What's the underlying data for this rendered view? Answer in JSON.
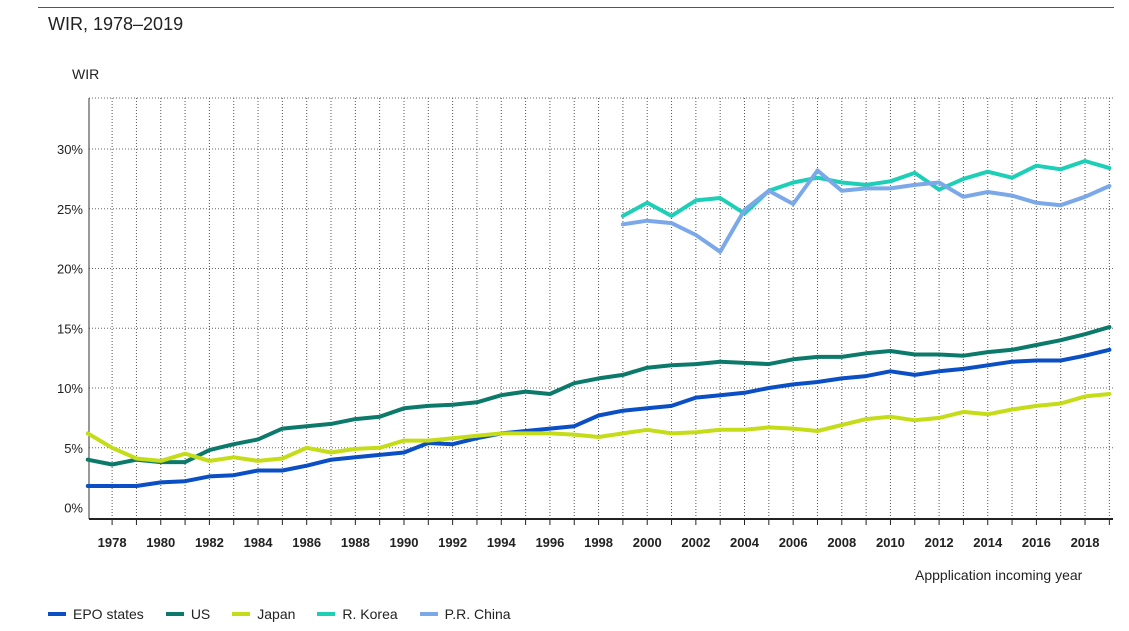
{
  "chart_data": {
    "type": "line",
    "title": "WIR, 1978–2019",
    "ylabel": "WIR",
    "xlabel": "Appplication incoming year",
    "xlim": [
      1977,
      2019
    ],
    "ylim": [
      0,
      35
    ],
    "yticks": [
      "0%",
      "5%",
      "10%",
      "15%",
      "20%",
      "25%",
      "30%"
    ],
    "ytick_values": [
      0,
      5,
      10,
      15,
      20,
      25,
      30
    ],
    "xticks": [
      "1978",
      "1980",
      "1982",
      "1984",
      "1986",
      "1988",
      "1990",
      "1992",
      "1994",
      "1996",
      "1998",
      "2000",
      "2002",
      "2004",
      "2006",
      "2008",
      "2010",
      "2012",
      "2014",
      "2016",
      "2018"
    ],
    "xtick_values": [
      1978,
      1980,
      1982,
      1984,
      1986,
      1988,
      1990,
      1992,
      1994,
      1996,
      1998,
      2000,
      2002,
      2004,
      2006,
      2008,
      2010,
      2012,
      2014,
      2016,
      2018
    ],
    "grid": "vertical dotted and horizontal dotted",
    "legend_placement": "bottom",
    "series": [
      {
        "name": "EPO states",
        "color": "#0a4fc4",
        "x": [
          1977,
          1978,
          1979,
          1980,
          1981,
          1982,
          1983,
          1984,
          1985,
          1986,
          1987,
          1988,
          1989,
          1990,
          1991,
          1992,
          1993,
          1994,
          1995,
          1996,
          1997,
          1998,
          1999,
          2000,
          2001,
          2002,
          2003,
          2004,
          2005,
          2006,
          2007,
          2008,
          2009,
          2010,
          2011,
          2012,
          2013,
          2014,
          2015,
          2016,
          2017,
          2018,
          2019
        ],
        "y": [
          1.8,
          1.8,
          1.8,
          2.1,
          2.2,
          2.6,
          2.7,
          3.1,
          3.1,
          3.5,
          4.0,
          4.2,
          4.4,
          4.6,
          5.4,
          5.3,
          5.8,
          6.2,
          6.4,
          6.6,
          6.8,
          7.7,
          8.1,
          8.3,
          8.5,
          9.2,
          9.4,
          9.6,
          10.0,
          10.3,
          10.5,
          10.8,
          11.0,
          11.4,
          11.1,
          11.4,
          11.6,
          11.9,
          12.2,
          12.3,
          12.3,
          12.7,
          13.2
        ]
      },
      {
        "name": "US",
        "color": "#0c7a6a",
        "x": [
          1977,
          1978,
          1979,
          1980,
          1981,
          1982,
          1983,
          1984,
          1985,
          1986,
          1987,
          1988,
          1989,
          1990,
          1991,
          1992,
          1993,
          1994,
          1995,
          1996,
          1997,
          1998,
          1999,
          2000,
          2001,
          2002,
          2003,
          2004,
          2005,
          2006,
          2007,
          2008,
          2009,
          2010,
          2011,
          2012,
          2013,
          2014,
          2015,
          2016,
          2017,
          2018,
          2019
        ],
        "y": [
          4.0,
          3.6,
          4.0,
          3.8,
          3.8,
          4.8,
          5.3,
          5.7,
          6.6,
          6.8,
          7.0,
          7.4,
          7.6,
          8.3,
          8.5,
          8.6,
          8.8,
          9.4,
          9.7,
          9.5,
          10.4,
          10.8,
          11.1,
          11.7,
          11.9,
          12.0,
          12.2,
          12.1,
          12.0,
          12.4,
          12.6,
          12.6,
          12.9,
          13.1,
          12.8,
          12.8,
          12.7,
          13.0,
          13.2,
          13.6,
          14.0,
          14.5,
          15.1
        ]
      },
      {
        "name": "Japan",
        "color": "#c5dc19",
        "x": [
          1977,
          1978,
          1979,
          1980,
          1981,
          1982,
          1983,
          1984,
          1985,
          1986,
          1987,
          1988,
          1989,
          1990,
          1991,
          1992,
          1993,
          1994,
          1995,
          1996,
          1997,
          1998,
          1999,
          2000,
          2001,
          2002,
          2003,
          2004,
          2005,
          2006,
          2007,
          2008,
          2009,
          2010,
          2011,
          2012,
          2013,
          2014,
          2015,
          2016,
          2017,
          2018,
          2019
        ],
        "y": [
          6.2,
          5.0,
          4.1,
          3.9,
          4.5,
          3.9,
          4.2,
          3.9,
          4.1,
          5.0,
          4.6,
          4.9,
          5.0,
          5.6,
          5.6,
          5.8,
          6.0,
          6.2,
          6.2,
          6.2,
          6.1,
          5.9,
          6.2,
          6.5,
          6.2,
          6.3,
          6.5,
          6.5,
          6.7,
          6.6,
          6.4,
          6.9,
          7.4,
          7.6,
          7.3,
          7.5,
          8.0,
          7.8,
          8.2,
          8.5,
          8.7,
          9.3,
          9.5
        ]
      },
      {
        "name": "R. Korea",
        "color": "#1dcfb6",
        "x": [
          1999,
          2000,
          2001,
          2002,
          2003,
          2004,
          2005,
          2006,
          2007,
          2008,
          2009,
          2010,
          2011,
          2012,
          2013,
          2014,
          2015,
          2016,
          2017,
          2018,
          2019
        ],
        "y": [
          24.4,
          25.5,
          24.4,
          25.7,
          25.9,
          24.6,
          26.5,
          27.2,
          27.6,
          27.2,
          27.0,
          27.3,
          28.0,
          26.6,
          27.5,
          28.1,
          27.6,
          28.6,
          28.3,
          29.0,
          28.4
        ]
      },
      {
        "name": "P.R. China",
        "color": "#7ba8e8",
        "x": [
          1999,
          2000,
          2001,
          2002,
          2003,
          2004,
          2005,
          2006,
          2007,
          2008,
          2009,
          2010,
          2011,
          2012,
          2013,
          2014,
          2015,
          2016,
          2017,
          2018,
          2019
        ],
        "y": [
          23.7,
          24.0,
          23.8,
          22.8,
          21.4,
          24.9,
          26.5,
          25.4,
          28.2,
          26.5,
          26.7,
          26.7,
          27.0,
          27.2,
          26.0,
          26.4,
          26.1,
          25.5,
          25.3,
          26.0,
          26.9
        ]
      }
    ]
  }
}
